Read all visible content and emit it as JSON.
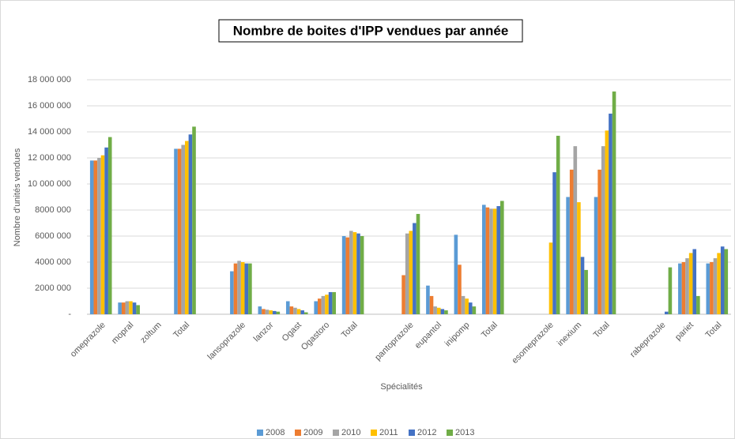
{
  "chart_data": {
    "type": "bar",
    "title": "Nombre de boites d'IPP vendues par année",
    "x_label": "Spécialités",
    "y_label": "Nombre d'unités vendues",
    "categories": [
      "omeprazole",
      "mopral",
      "zoltum",
      "Total",
      null,
      "lansoprazole",
      "lanzor",
      "Ogast",
      "Ogastoro",
      "Total",
      null,
      "pantoprazole",
      "eupantol",
      "inipomp",
      "Total",
      null,
      "esomeprazole",
      "inexium",
      "Total",
      null,
      "rabeprazole",
      "pariet",
      "Total"
    ],
    "series": [
      {
        "name": "2008",
        "color": "#5b9bd5",
        "values": [
          11800000,
          900000,
          0,
          12700000,
          null,
          3300000,
          600000,
          1000000,
          1000000,
          6000000,
          null,
          0,
          2200000,
          6100000,
          8400000,
          null,
          0,
          9000000,
          9000000,
          null,
          0,
          3900000,
          3900000
        ]
      },
      {
        "name": "2009",
        "color": "#ed7d31",
        "values": [
          11800000,
          900000,
          0,
          12700000,
          null,
          3900000,
          400000,
          600000,
          1200000,
          5900000,
          null,
          3000000,
          1400000,
          3800000,
          8200000,
          null,
          0,
          11100000,
          11100000,
          null,
          0,
          4000000,
          4000000
        ]
      },
      {
        "name": "2010",
        "color": "#a5a5a5",
        "values": [
          12000000,
          1000000,
          0,
          13000000,
          null,
          4100000,
          350000,
          500000,
          1400000,
          6400000,
          null,
          6200000,
          600000,
          1400000,
          8100000,
          null,
          0,
          12900000,
          12900000,
          null,
          0,
          4300000,
          4300000
        ]
      },
      {
        "name": "2011",
        "color": "#ffc000",
        "values": [
          12200000,
          1000000,
          0,
          13300000,
          null,
          4000000,
          300000,
          400000,
          1500000,
          6300000,
          null,
          6400000,
          500000,
          1200000,
          8100000,
          null,
          5500000,
          8600000,
          14100000,
          null,
          0,
          4700000,
          4700000
        ]
      },
      {
        "name": "2012",
        "color": "#4472c4",
        "values": [
          12800000,
          900000,
          0,
          13800000,
          null,
          3900000,
          250000,
          300000,
          1700000,
          6200000,
          null,
          7000000,
          400000,
          900000,
          8300000,
          null,
          10900000,
          4400000,
          15400000,
          null,
          200000,
          5000000,
          5200000
        ]
      },
      {
        "name": "2013",
        "color": "#70ad47",
        "values": [
          13600000,
          700000,
          0,
          14400000,
          null,
          3900000,
          200000,
          150000,
          1700000,
          6000000,
          null,
          7700000,
          300000,
          600000,
          8700000,
          null,
          13700000,
          3400000,
          17100000,
          null,
          3600000,
          1400000,
          5000000
        ]
      }
    ],
    "ylim": [
      0,
      18000000
    ],
    "yticks": [
      {
        "value": 0,
        "label": "-"
      },
      {
        "value": 2000000,
        "label": "2000 000"
      },
      {
        "value": 4000000,
        "label": "4000 000"
      },
      {
        "value": 6000000,
        "label": "6000 000"
      },
      {
        "value": 8000000,
        "label": "8000 000"
      },
      {
        "value": 10000000,
        "label": "10 000 000"
      },
      {
        "value": 12000000,
        "label": "12 000 000"
      },
      {
        "value": 14000000,
        "label": "14 000 000"
      },
      {
        "value": 16000000,
        "label": "16 000 000"
      },
      {
        "value": 18000000,
        "label": "18 000 000"
      }
    ],
    "grid": true,
    "legend": "bottom"
  }
}
